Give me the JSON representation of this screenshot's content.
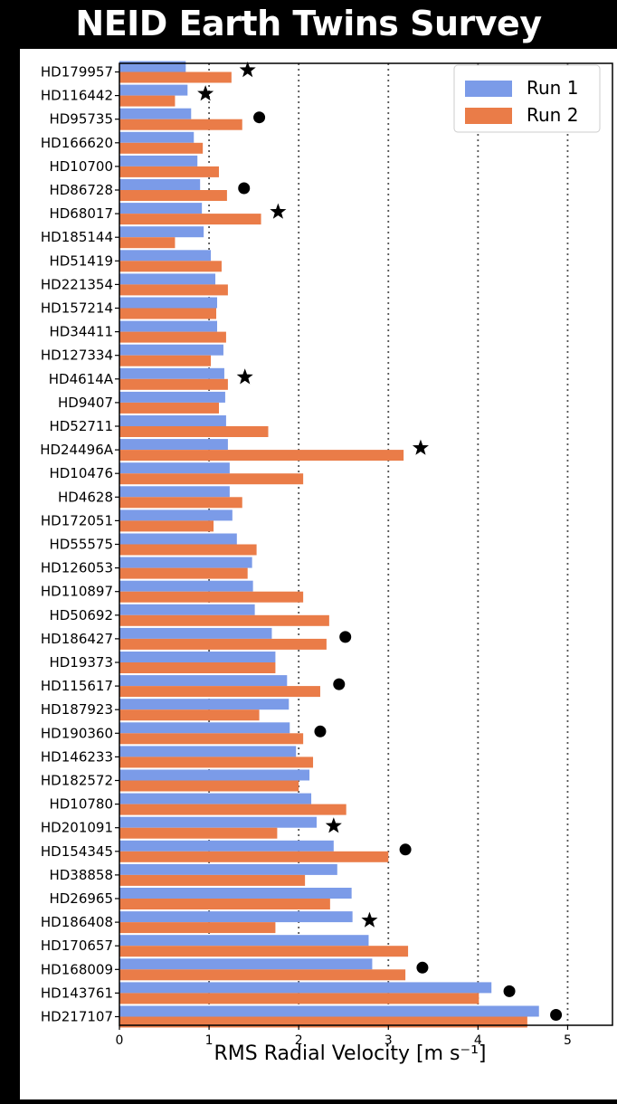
{
  "title": "NEID Earth Twins Survey",
  "colors": {
    "run1": "#7b9be8",
    "run2": "#ea7c48",
    "marker": "#000000"
  },
  "chart_data": {
    "type": "bar",
    "orientation": "horizontal",
    "xlabel": "RMS Radial Velocity [m s⁻¹]",
    "ylabel": "",
    "xlim": [
      0,
      5.5
    ],
    "xticks": [
      0,
      1,
      2,
      3,
      4,
      5
    ],
    "vertical_grid_lines": [
      1,
      2,
      3,
      4,
      5
    ],
    "grid_style": "dotted",
    "legend": {
      "placement": "top-right",
      "entries": [
        "Run 1",
        "Run 2"
      ]
    },
    "categories": [
      "HD179957",
      "HD116442",
      "HD95735",
      "HD166620",
      "HD10700",
      "HD86728",
      "HD68017",
      "HD185144",
      "HD51419",
      "HD221354",
      "HD157214",
      "HD34411",
      "HD127334",
      "HD4614A",
      "HD9407",
      "HD52711",
      "HD24496A",
      "HD10476",
      "HD4628",
      "HD172051",
      "HD55575",
      "HD126053",
      "HD110897",
      "HD50692",
      "HD186427",
      "HD19373",
      "HD115617",
      "HD187923",
      "HD190360",
      "HD146233",
      "HD182572",
      "HD10780",
      "HD201091",
      "HD154345",
      "HD38858",
      "HD26965",
      "HD186408",
      "HD170657",
      "HD168009",
      "HD143761",
      "HD217107"
    ],
    "series": [
      {
        "name": "Run 1",
        "values": [
          0.74,
          0.76,
          0.8,
          0.83,
          0.87,
          0.9,
          0.92,
          0.94,
          1.02,
          1.07,
          1.09,
          1.09,
          1.16,
          1.17,
          1.18,
          1.19,
          1.21,
          1.23,
          1.23,
          1.26,
          1.31,
          1.48,
          1.49,
          1.51,
          1.7,
          1.74,
          1.87,
          1.89,
          1.9,
          1.97,
          2.12,
          2.14,
          2.2,
          2.39,
          2.43,
          2.59,
          2.6,
          2.78,
          2.82,
          4.15,
          4.68
        ]
      },
      {
        "name": "Run 2",
        "values": [
          1.25,
          0.62,
          1.37,
          0.93,
          1.11,
          1.2,
          1.58,
          0.62,
          1.14,
          1.21,
          1.08,
          1.19,
          1.02,
          1.21,
          1.11,
          1.66,
          3.17,
          2.05,
          1.37,
          1.05,
          1.53,
          1.43,
          2.05,
          2.34,
          2.31,
          1.74,
          2.24,
          1.56,
          2.05,
          2.16,
          2.0,
          2.53,
          1.76,
          3.0,
          2.07,
          2.35,
          1.74,
          3.22,
          3.19,
          4.01,
          4.55
        ]
      }
    ],
    "markers": [
      {
        "category": "HD179957",
        "symbol": "star",
        "x": 1.43
      },
      {
        "category": "HD116442",
        "symbol": "star",
        "x": 0.96
      },
      {
        "category": "HD95735",
        "symbol": "circle",
        "x": 1.56
      },
      {
        "category": "HD86728",
        "symbol": "circle",
        "x": 1.39
      },
      {
        "category": "HD68017",
        "symbol": "star",
        "x": 1.77
      },
      {
        "category": "HD4614A",
        "symbol": "star",
        "x": 1.4
      },
      {
        "category": "HD24496A",
        "symbol": "star",
        "x": 3.36
      },
      {
        "category": "HD186427",
        "symbol": "circle",
        "x": 2.52
      },
      {
        "category": "HD115617",
        "symbol": "circle",
        "x": 2.45
      },
      {
        "category": "HD190360",
        "symbol": "circle",
        "x": 2.24
      },
      {
        "category": "HD201091",
        "symbol": "star",
        "x": 2.39
      },
      {
        "category": "HD154345",
        "symbol": "circle",
        "x": 3.19
      },
      {
        "category": "HD186408",
        "symbol": "star",
        "x": 2.79
      },
      {
        "category": "HD168009",
        "symbol": "circle",
        "x": 3.38
      },
      {
        "category": "HD143761",
        "symbol": "circle",
        "x": 4.35
      },
      {
        "category": "HD217107",
        "symbol": "circle",
        "x": 4.87
      }
    ]
  }
}
